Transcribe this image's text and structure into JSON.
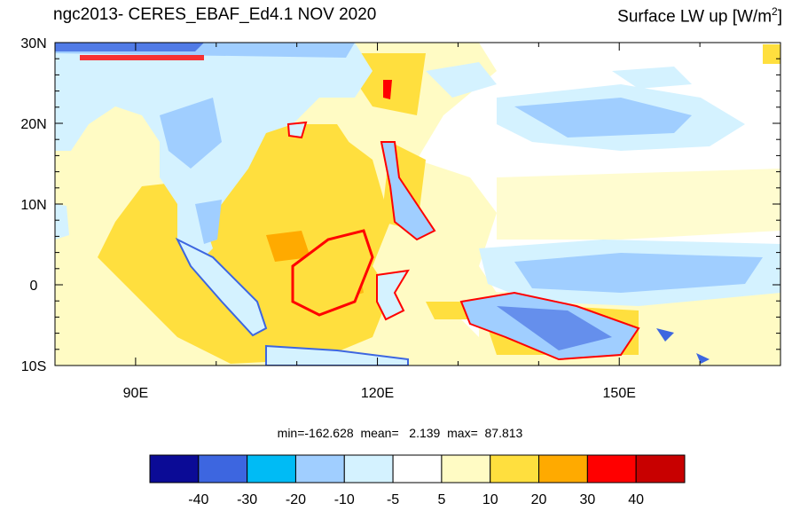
{
  "title": {
    "left": "ngc2013- CERES_EBAF_Ed4.1 NOV 2020",
    "right_main": "Surface LW up [W/m",
    "right_sup": "2",
    "right_close": "]"
  },
  "map": {
    "lat_labels": [
      "30N",
      "20N",
      "10N",
      "0",
      "10S"
    ],
    "lon_labels": [
      "90E",
      "120E",
      "150E"
    ],
    "lon_range": [
      80,
      170
    ],
    "lat_range": [
      -10,
      30
    ]
  },
  "stats": {
    "text": "min=-162.628  mean=   2.139  max=  87.813"
  },
  "colorbar": {
    "colors": [
      "#0b0b96",
      "#3d66e0",
      "#00bbf5",
      "#a0ceff",
      "#d4f2ff",
      "#ffffff",
      "#fffbc4",
      "#ffdf3e",
      "#ffaa00",
      "#ff0000",
      "#c80000"
    ],
    "tick_labels": [
      "-40",
      "-30",
      "-20",
      "-10",
      "-5",
      "5",
      "10",
      "20",
      "30",
      "40"
    ]
  }
}
